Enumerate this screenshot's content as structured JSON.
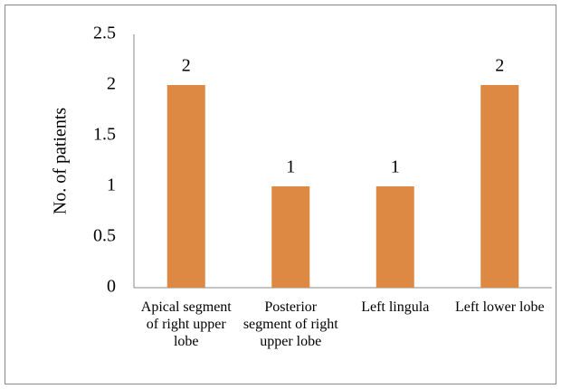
{
  "chart_data": {
    "type": "bar",
    "y_label": "No. of patients",
    "categories": [
      "Apical segment of right upper lobe",
      "Posterior segment of right upper lobe",
      "Left lingula",
      "Left lower lobe"
    ],
    "values": [
      2,
      1,
      1,
      2
    ],
    "color": "#dd8843",
    "ylim": [
      0,
      2.5
    ],
    "yticks": [
      0,
      0.5,
      1,
      1.5,
      2,
      2.5
    ],
    "grid": false
  }
}
